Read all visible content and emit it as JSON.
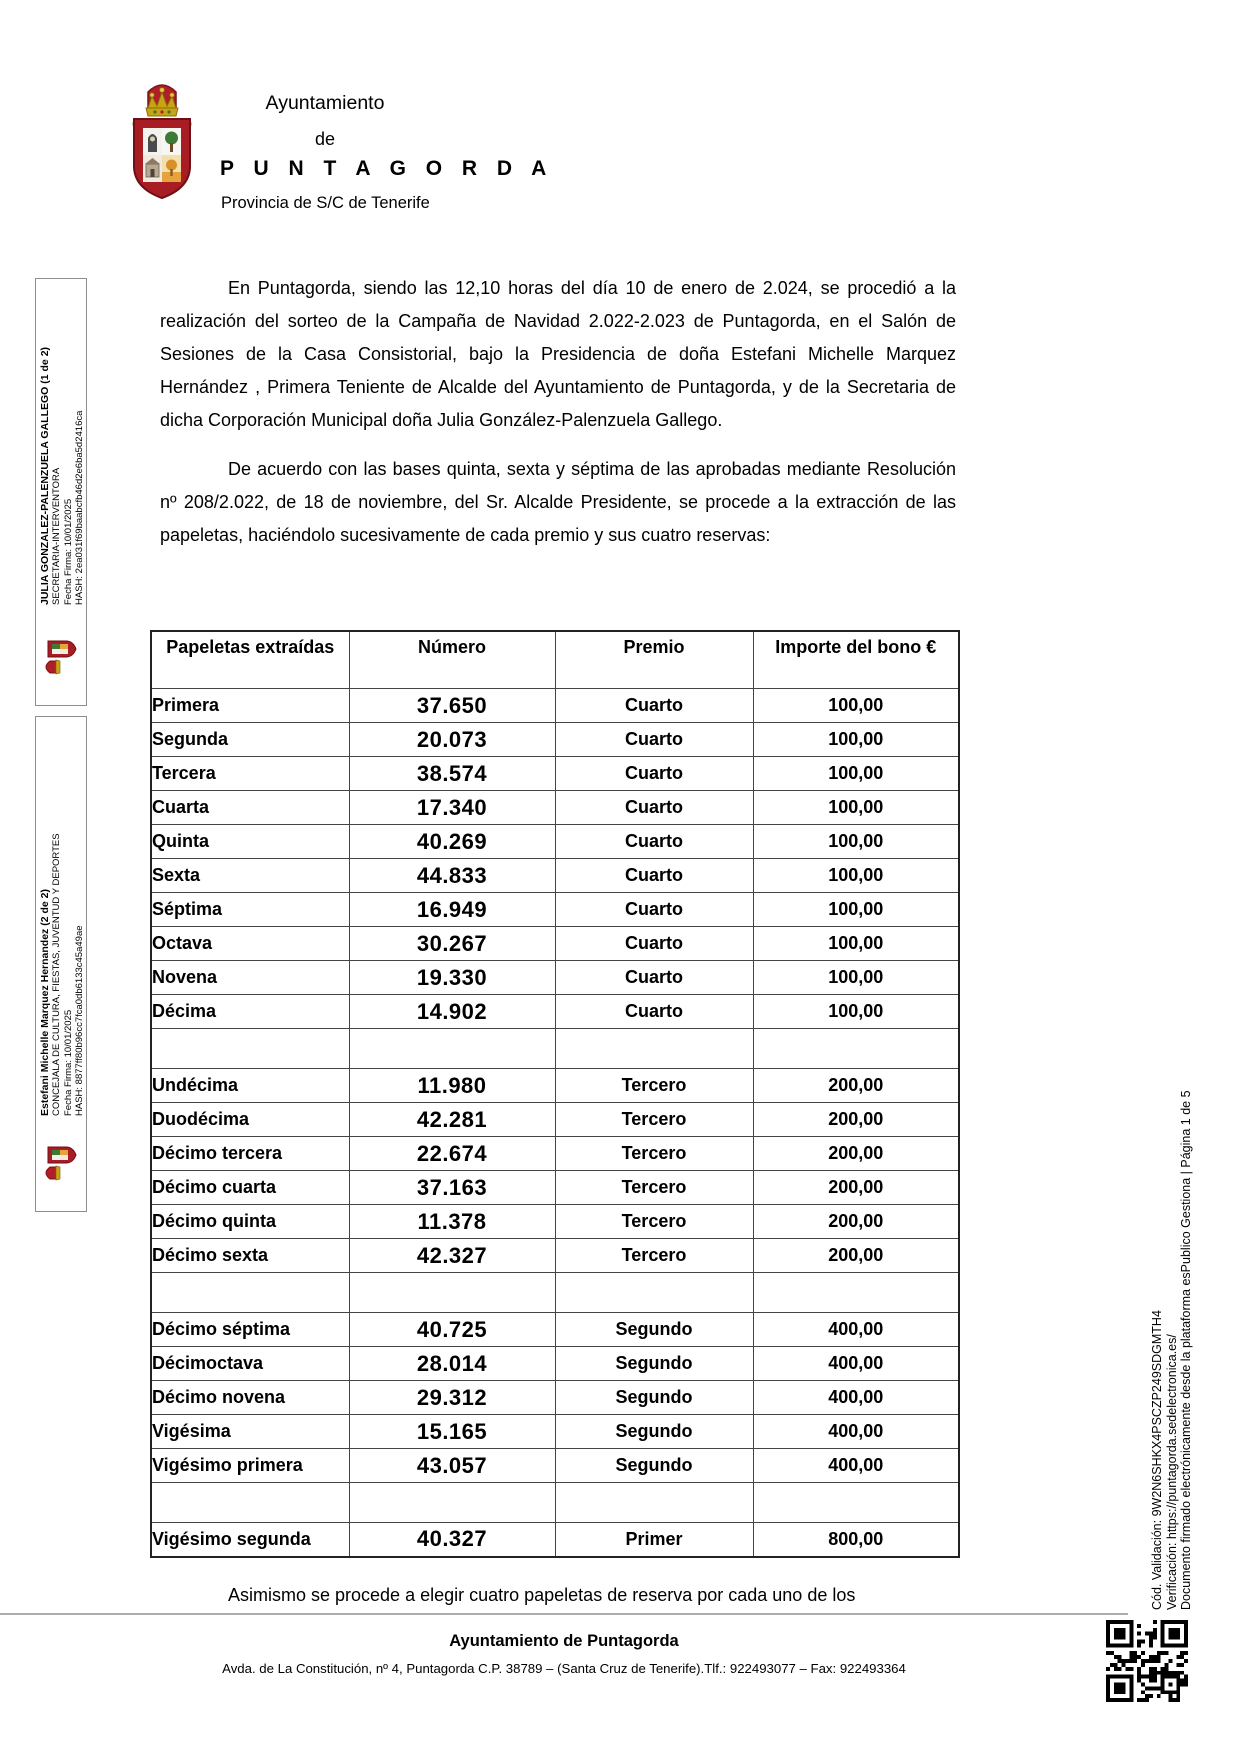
{
  "header": {
    "line1": "Ayuntamiento",
    "line2": "de",
    "line3": "P U N T A G O R D A",
    "line4": "Provincia de S/C de Tenerife"
  },
  "paragraphs": {
    "p1": "En Puntagorda, siendo las 12,10 horas del día 10 de enero de 2.024, se procedió a la realización del sorteo de la Campaña de Navidad 2.022-2.023 de Puntagorda, en el Salón de Sesiones de la Casa Consistorial, bajo la Presidencia de doña Estefani Michelle Marquez Hernández , Primera Teniente de Alcalde del Ayuntamiento de Puntagorda, y de la Secretaria de dicha Corporación Municipal doña Julia González-Palenzuela Gallego.",
    "p2": "De acuerdo con las bases quinta, sexta y séptima de las aprobadas mediante Resolución nº 208/2.022, de 18 de noviembre, del Sr. Alcalde Presidente, se procede a la extracción de las papeletas, haciéndolo sucesivamente de cada premio y sus cuatro reservas:",
    "p3": "Asimismo se procede a elegir cuatro papeletas de reserva por cada uno de los"
  },
  "table": {
    "headers": [
      "Papeletas extraídas",
      "Número",
      "Premio",
      "Importe del bono €"
    ],
    "rows": [
      {
        "label": "Primera",
        "numero": "37.650",
        "premio": "Cuarto",
        "importe": "100,00"
      },
      {
        "label": "Segunda",
        "numero": "20.073",
        "premio": "Cuarto",
        "importe": "100,00"
      },
      {
        "label": "Tercera",
        "numero": "38.574",
        "premio": "Cuarto",
        "importe": "100,00"
      },
      {
        "label": "Cuarta",
        "numero": "17.340",
        "premio": "Cuarto",
        "importe": "100,00"
      },
      {
        "label": "Quinta",
        "numero": "40.269",
        "premio": "Cuarto",
        "importe": "100,00"
      },
      {
        "label": "Sexta",
        "numero": "44.833",
        "premio": "Cuarto",
        "importe": "100,00"
      },
      {
        "label": "Séptima",
        "numero": "16.949",
        "premio": "Cuarto",
        "importe": "100,00"
      },
      {
        "label": "Octava",
        "numero": "30.267",
        "premio": "Cuarto",
        "importe": "100,00"
      },
      {
        "label": "Novena",
        "numero": "19.330",
        "premio": "Cuarto",
        "importe": "100,00"
      },
      {
        "label": "Décima",
        "numero": "14.902",
        "premio": "Cuarto",
        "importe": "100,00"
      },
      {
        "label": "",
        "numero": "",
        "premio": "",
        "importe": "",
        "blank": true
      },
      {
        "label": "Undécima",
        "numero": "11.980",
        "premio": "Tercero",
        "importe": "200,00"
      },
      {
        "label": "Duodécima",
        "numero": "42.281",
        "premio": "Tercero",
        "importe": "200,00"
      },
      {
        "label": "Décimo tercera",
        "numero": "22.674",
        "premio": "Tercero",
        "importe": "200,00"
      },
      {
        "label": "Décimo cuarta",
        "numero": "37.163",
        "premio": "Tercero",
        "importe": "200,00"
      },
      {
        "label": "Décimo quinta",
        "numero": "11.378",
        "premio": "Tercero",
        "importe": "200,00"
      },
      {
        "label": "Décimo sexta",
        "numero": "42.327",
        "premio": "Tercero",
        "importe": "200,00"
      },
      {
        "label": "",
        "numero": "",
        "premio": "",
        "importe": "",
        "blank": true
      },
      {
        "label": "Décimo séptima",
        "numero": "40.725",
        "premio": "Segundo",
        "importe": "400,00"
      },
      {
        "label": "Décimoctava",
        "numero": "28.014",
        "premio": "Segundo",
        "importe": "400,00"
      },
      {
        "label": "Décimo novena",
        "numero": "29.312",
        "premio": "Segundo",
        "importe": "400,00"
      },
      {
        "label": "Vigésima",
        "numero": "15.165",
        "premio": "Segundo",
        "importe": "400,00"
      },
      {
        "label": "Vigésimo primera",
        "numero": "43.057",
        "premio": "Segundo",
        "importe": "400,00"
      },
      {
        "label": "",
        "numero": "",
        "premio": "",
        "importe": "",
        "blank": true
      },
      {
        "label": "Vigésimo segunda",
        "numero": "40.327",
        "premio": "Primer",
        "importe": "800,00"
      }
    ]
  },
  "signatures": [
    {
      "name": "JULIA GONZALEZ-PALENZUELA GALLEGO (1 de 2)",
      "role": "SECRETARIA-INTERVENTORA",
      "fecha": "Fecha Firma: 10/01/2025",
      "hash": "HASH: 2ea031f69baabcfb46d2e6ba5d2416ca"
    },
    {
      "name": "Estefani Michelle Marquez Hernandez (2 de 2)",
      "role": "CONCEJALA DE CULTURA, FIESTAS, JUVENTUD Y DEPORTES",
      "fecha": "Fecha Firma: 10/01/2025",
      "hash": "HASH: 8877ff80b96cc7fca0db6133c45a49ae"
    }
  ],
  "validation": {
    "cod": "Cód. Validación: 9W2N6SHKX4PSCZP249SDGMTH4",
    "verificacion": "Verificación: https://puntagorda.sedelectronica.es/",
    "documento": "Documento firmado electrónicamente desde la plataforma esPublico Gestiona | Página 1 de 5"
  },
  "footer": {
    "name": "Ayuntamiento de Puntagorda",
    "address": "Avda. de La Constitución, nº 4, Puntagorda C.P. 38789 – (Santa Cruz de Tenerife).Tlf.: 922493077 – Fax: 922493364"
  },
  "colors": {
    "shield_red": "#a81c24",
    "crown_gold": "#c8a415",
    "tree_green": "#3e7a33",
    "field_orange": "#e8a23c",
    "rule_gray": "#adadad"
  }
}
